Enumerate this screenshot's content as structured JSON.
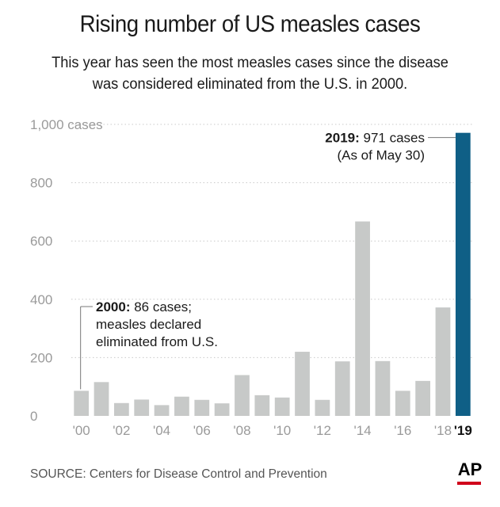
{
  "header": {
    "title": "Rising number of US measles cases",
    "subtitle_line1": "This year has seen the most measles cases since the disease",
    "subtitle_line2": "was considered eliminated from the U.S. in 2000."
  },
  "footer": {
    "source": "SOURCE: Centers for Disease Control and Prevention",
    "logo": "AP"
  },
  "colors": {
    "bar": "#c7c9c8",
    "highlight": "#0f5f86",
    "grid": "#c9c9c9",
    "tick": "#9a9a9a",
    "logo_accent": "#d0021b"
  },
  "chart_data": {
    "type": "bar",
    "categories": [
      "2000",
      "2001",
      "2002",
      "2003",
      "2004",
      "2005",
      "2006",
      "2007",
      "2008",
      "2009",
      "2010",
      "2011",
      "2012",
      "2013",
      "2014",
      "2015",
      "2016",
      "2017",
      "2018",
      "2019"
    ],
    "values": [
      86,
      116,
      44,
      56,
      37,
      66,
      55,
      43,
      140,
      71,
      63,
      220,
      55,
      187,
      667,
      188,
      86,
      120,
      372,
      971
    ],
    "highlight_index": 19,
    "ylim": [
      0,
      1000
    ],
    "yticks": [
      0,
      200,
      400,
      600,
      800,
      1000
    ],
    "ytick_labels": [
      "0",
      "200",
      "400",
      "600",
      "800",
      "1,000 cases"
    ],
    "xtick_labels": [
      "'00",
      "",
      "'02",
      "",
      "'04",
      "",
      "'06",
      "",
      "'08",
      "",
      "'10",
      "",
      "'12",
      "",
      "'14",
      "",
      "'16",
      "",
      "'18",
      "'19"
    ],
    "grid": true,
    "annotations": [
      {
        "index": 0,
        "bold": "2000:",
        "lines": [
          " 86 cases;",
          "measles declared",
          "eliminated from U.S."
        ]
      },
      {
        "index": 19,
        "bold": "2019:",
        "lines": [
          " 971 cases",
          "(As of May 30)"
        ]
      }
    ]
  }
}
